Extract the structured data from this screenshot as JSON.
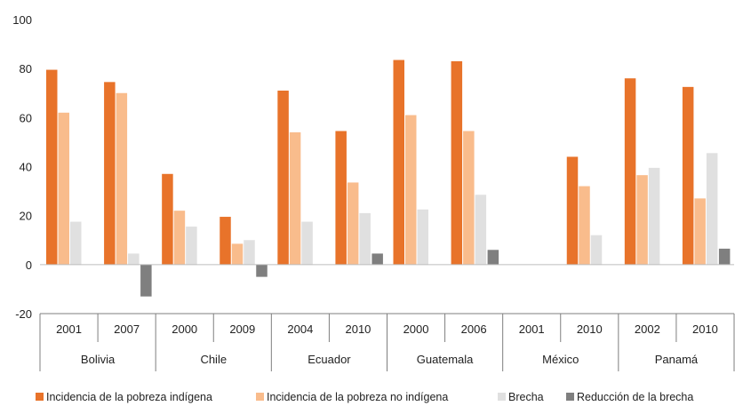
{
  "chart_data": {
    "type": "bar",
    "title": "",
    "xlabel": "",
    "ylabel": "",
    "ylim": [
      -20,
      100
    ],
    "yticks": [
      -20,
      0,
      20,
      40,
      60,
      80,
      100
    ],
    "grid": false,
    "legend_position": "bottom",
    "groups": [
      {
        "name": "Bolivia",
        "years": [
          "2001",
          "2007"
        ]
      },
      {
        "name": "Chile",
        "years": [
          "2000",
          "2009"
        ]
      },
      {
        "name": "Ecuador",
        "years": [
          "2004",
          "2010"
        ]
      },
      {
        "name": "Guatemala",
        "years": [
          "2000",
          "2006"
        ]
      },
      {
        "name": "México",
        "years": [
          "2001",
          "2010"
        ]
      },
      {
        "name": "Panamá",
        "years": [
          "2002",
          "2010"
        ]
      }
    ],
    "categories": [
      "2001",
      "2007",
      "2000",
      "2009",
      "2004",
      "2010",
      "2000",
      "2006",
      "2001",
      "2010",
      "2002",
      "2010"
    ],
    "series": [
      {
        "name": "Incidencia de la pobreza indígena",
        "color": "#e8732a",
        "values": [
          79.5,
          74.5,
          37,
          19.5,
          71,
          54.5,
          83.5,
          83,
          null,
          44,
          76,
          72.5
        ]
      },
      {
        "name": "Incidencia de la pobreza no indígena",
        "color": "#f9bc8c",
        "values": [
          62,
          70,
          22,
          8.5,
          54,
          33.5,
          61,
          54.5,
          null,
          32,
          36.5,
          27
        ]
      },
      {
        "name": "Brecha",
        "color": "#e0e0e0",
        "values": [
          17.5,
          4.5,
          15.5,
          10,
          17.5,
          21,
          22.5,
          28.5,
          null,
          12,
          39.5,
          45.5
        ]
      },
      {
        "name": "Reducción de la brecha",
        "color": "#7f7f7f",
        "values": [
          null,
          -13,
          null,
          -5,
          null,
          4.5,
          null,
          6,
          null,
          null,
          null,
          6.5
        ]
      }
    ]
  }
}
